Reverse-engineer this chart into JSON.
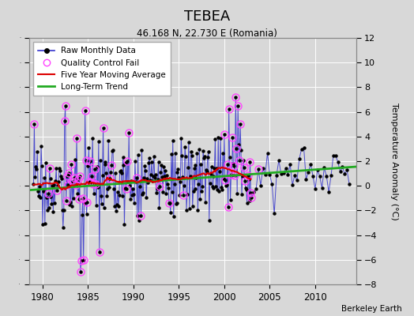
{
  "title": "TEBEA",
  "subtitle": "46.168 N, 22.730 E (Romania)",
  "credit": "Berkeley Earth",
  "xlim": [
    1978.5,
    2014.5
  ],
  "ylim": [
    -8,
    12
  ],
  "yticks": [
    -8,
    -6,
    -4,
    -2,
    0,
    2,
    4,
    6,
    8,
    10,
    12
  ],
  "xticks": [
    1980,
    1985,
    1990,
    1995,
    2000,
    2005,
    2010
  ],
  "ylabel": "Temperature Anomaly (°C)",
  "raw_color": "#3333cc",
  "qc_color": "#ff44ff",
  "moving_avg_color": "#dd0000",
  "trend_color": "#22aa22",
  "background_color": "#d8d8d8",
  "trend_x0": 1978.5,
  "trend_x1": 2014.5,
  "trend_y0": -0.35,
  "trend_y1": 1.55,
  "seed": 17
}
